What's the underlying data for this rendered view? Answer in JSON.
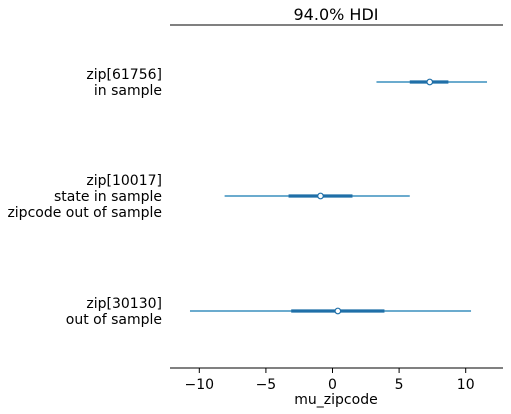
{
  "chart_data": {
    "type": "forest",
    "title": "94.0% HDI",
    "xlabel": "mu_zipcode",
    "xlim": [
      -12.2,
      12.8
    ],
    "xticks": [
      -10,
      -5,
      0,
      5,
      10
    ],
    "xtick_labels": [
      "−10",
      "−5",
      "0",
      "5",
      "10"
    ],
    "grid": false,
    "colors": {
      "hdi_line": "#3a8fbe",
      "iqr_line": "#1f6fa8",
      "point_fill": "#ffffff",
      "point_edge": "#1f6fa8"
    },
    "rows": [
      {
        "label_lines": [
          "zip[61756]",
          "in sample"
        ],
        "mean": 7.3,
        "hdi_low": 3.3,
        "hdi_high": 11.6,
        "iqr_low": 5.8,
        "iqr_high": 8.7
      },
      {
        "label_lines": [
          "zip[10017]",
          "state in sample",
          "zipcode out of sample"
        ],
        "mean": -0.9,
        "hdi_low": -8.1,
        "hdi_high": 5.8,
        "iqr_low": -3.3,
        "iqr_high": 1.5
      },
      {
        "label_lines": [
          "zip[30130]",
          "out of sample"
        ],
        "mean": 0.4,
        "hdi_low": -10.7,
        "hdi_high": 10.4,
        "iqr_low": -3.1,
        "iqr_high": 3.9
      }
    ]
  }
}
